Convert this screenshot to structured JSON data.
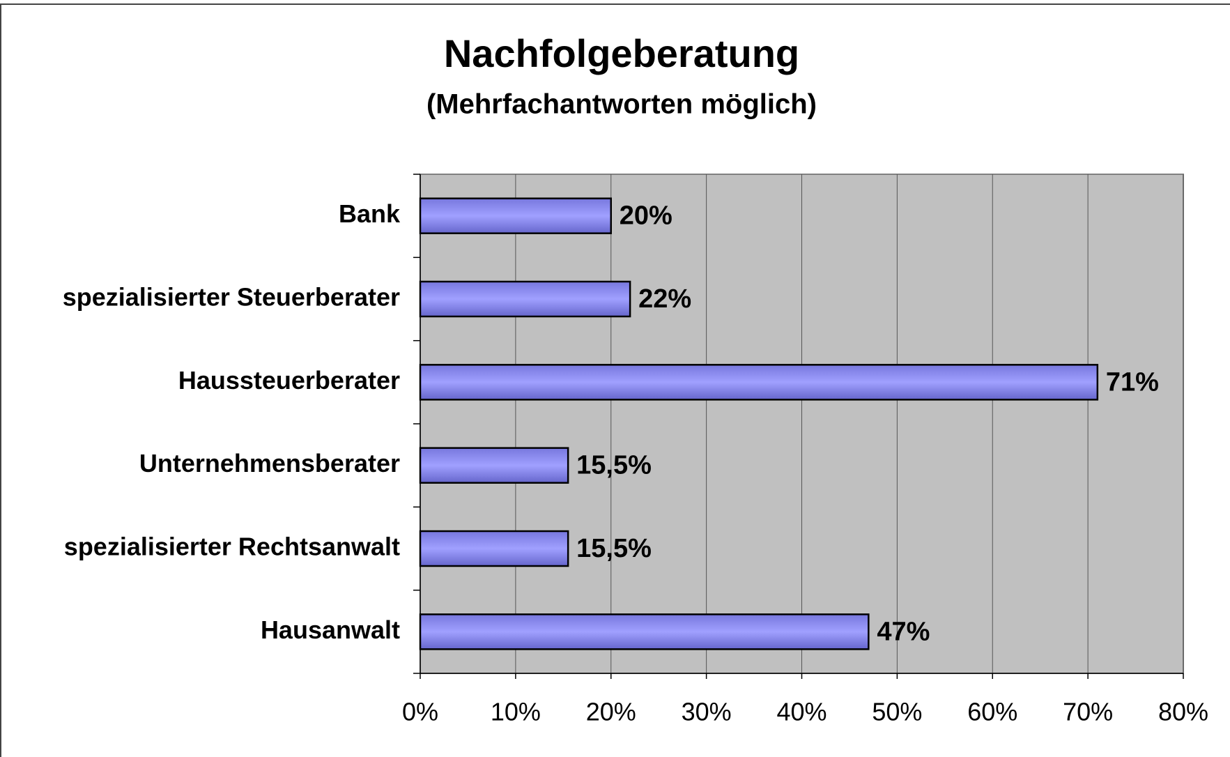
{
  "chart_data": {
    "type": "bar",
    "orientation": "horizontal",
    "title": "Nachfolgeberatung",
    "subtitle": "(Mehrfachantworten möglich)",
    "categories": [
      "Bank",
      "spezialisierter Steuerberater",
      "Haussteuerberater",
      "Unternehmensberater",
      "spezialisierter Rechtsanwalt",
      "Hausanwalt"
    ],
    "values": [
      20,
      22,
      71,
      15.5,
      15.5,
      47
    ],
    "value_labels": [
      "20%",
      "22%",
      "71%",
      "15,5%",
      "15,5%",
      "47%"
    ],
    "color": "#9999ff",
    "xlim": [
      0,
      80
    ],
    "xticks": [
      {
        "value": 0,
        "label": "0%"
      },
      {
        "value": 10,
        "label": "10%"
      },
      {
        "value": 20,
        "label": "20%"
      },
      {
        "value": 30,
        "label": "30%"
      },
      {
        "value": 40,
        "label": "40%"
      },
      {
        "value": 50,
        "label": "50%"
      },
      {
        "value": 60,
        "label": "60%"
      },
      {
        "value": 70,
        "label": "70%"
      },
      {
        "value": 80,
        "label": "80%"
      }
    ],
    "grid": true
  }
}
